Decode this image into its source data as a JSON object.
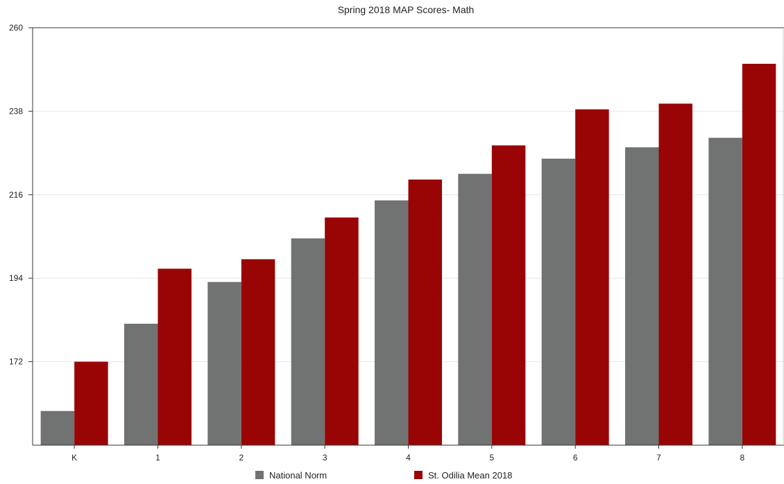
{
  "chart_data": {
    "type": "bar",
    "title": "Spring 2018 MAP Scores- Math",
    "xlabel": "",
    "ylabel": "",
    "categories": [
      "K",
      "1",
      "2",
      "3",
      "4",
      "5",
      "6",
      "7",
      "8"
    ],
    "series": [
      {
        "name": "National Norm",
        "color": "#707372",
        "values": [
          159,
          182,
          193,
          204.5,
          214.5,
          221.5,
          225.5,
          228.5,
          231
        ]
      },
      {
        "name": "St. Odilia Mean 2018",
        "color": "#990505",
        "values": [
          172,
          196.5,
          199,
          210,
          220,
          229,
          238.5,
          240,
          250.5
        ]
      }
    ],
    "ylim": [
      150,
      260
    ],
    "yticks": [
      172,
      194,
      216,
      238,
      260
    ],
    "grid": true,
    "legend_position": "bottom-center"
  }
}
